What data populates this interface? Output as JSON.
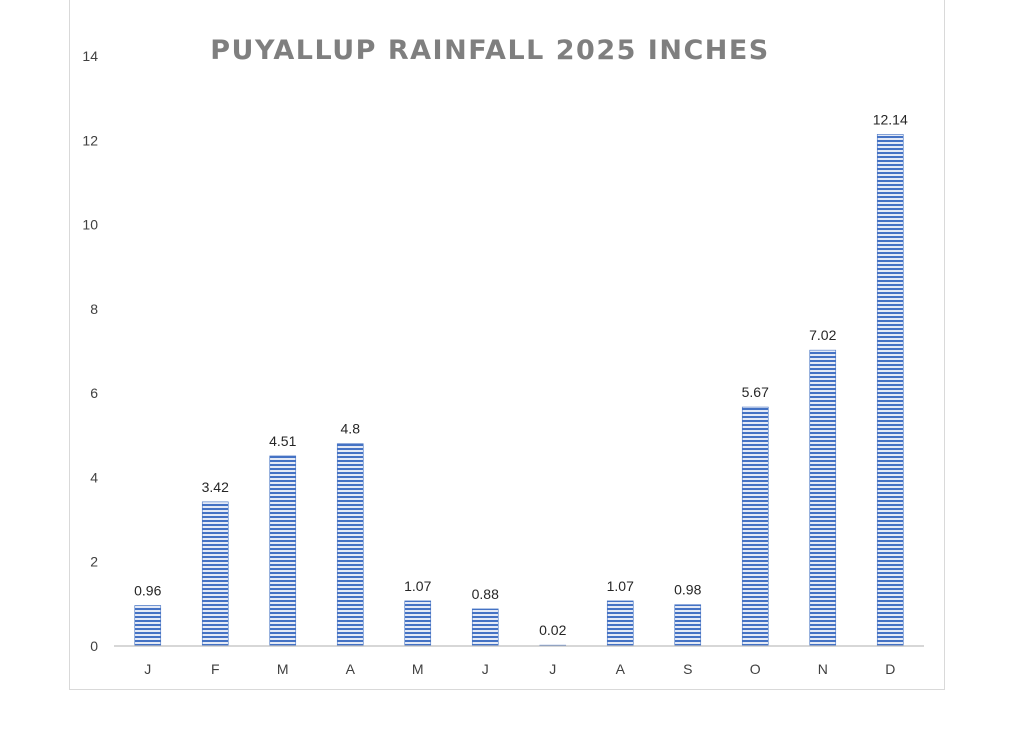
{
  "chart_data": {
    "type": "bar",
    "title": "PUYALLUP RAINFALL 2025 INCHES",
    "xlabel": "",
    "ylabel": "",
    "categories": [
      "J",
      "F",
      "M",
      "A",
      "M",
      "J",
      "J",
      "A",
      "S",
      "O",
      "N",
      "D"
    ],
    "values": [
      0.96,
      3.42,
      4.51,
      4.8,
      1.07,
      0.88,
      0.02,
      1.07,
      0.98,
      5.67,
      7.02,
      12.14
    ],
    "data_labels": [
      "0.96",
      "3.42",
      "4.51",
      "4.8",
      "1.07",
      "0.88",
      "0.02",
      "1.07",
      "0.98",
      "5.67",
      "7.02",
      "12.14"
    ],
    "ylim": [
      0,
      14
    ],
    "yticks": [
      0,
      2,
      4,
      6,
      8,
      10,
      12,
      14
    ],
    "grid": false,
    "legend": "none",
    "colors": {
      "bar": "#4472c4",
      "bar_stripe": "#ffffff",
      "axis": "#bfbfbf",
      "title": "#7f7f7f"
    }
  }
}
